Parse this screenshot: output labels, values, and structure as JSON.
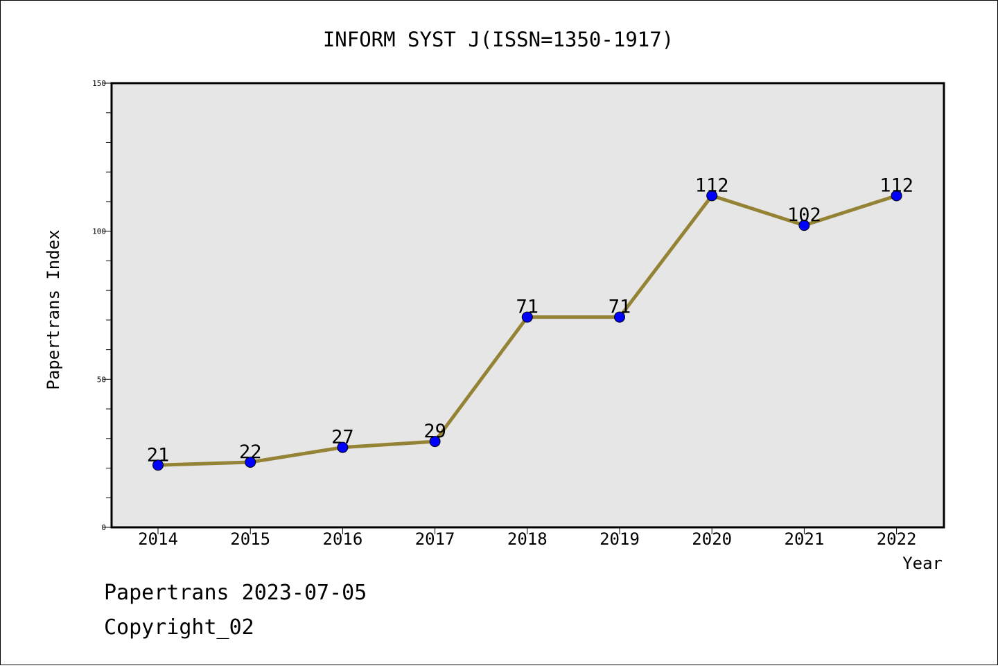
{
  "chart_data": {
    "type": "line",
    "title": "INFORM SYST J(ISSN=1350-1917)",
    "xlabel": "Year",
    "ylabel": "Papertrans Index",
    "x": [
      "2014",
      "2015",
      "2016",
      "2017",
      "2018",
      "2019",
      "2020",
      "2021",
      "2022"
    ],
    "series": [
      {
        "values": [
          21,
          22,
          27,
          29,
          71,
          71,
          112,
          102,
          112
        ]
      }
    ],
    "ylim": [
      0,
      150
    ],
    "yticks": [
      0,
      50,
      100,
      150
    ],
    "grid": false,
    "legend": "none",
    "colors": {
      "line": "#948235",
      "marker": "#0000ff",
      "plot_bg": "#e6e6e6"
    }
  },
  "footer": {
    "line1": "Papertrans 2023-07-05",
    "line2": "Copyright_02"
  }
}
